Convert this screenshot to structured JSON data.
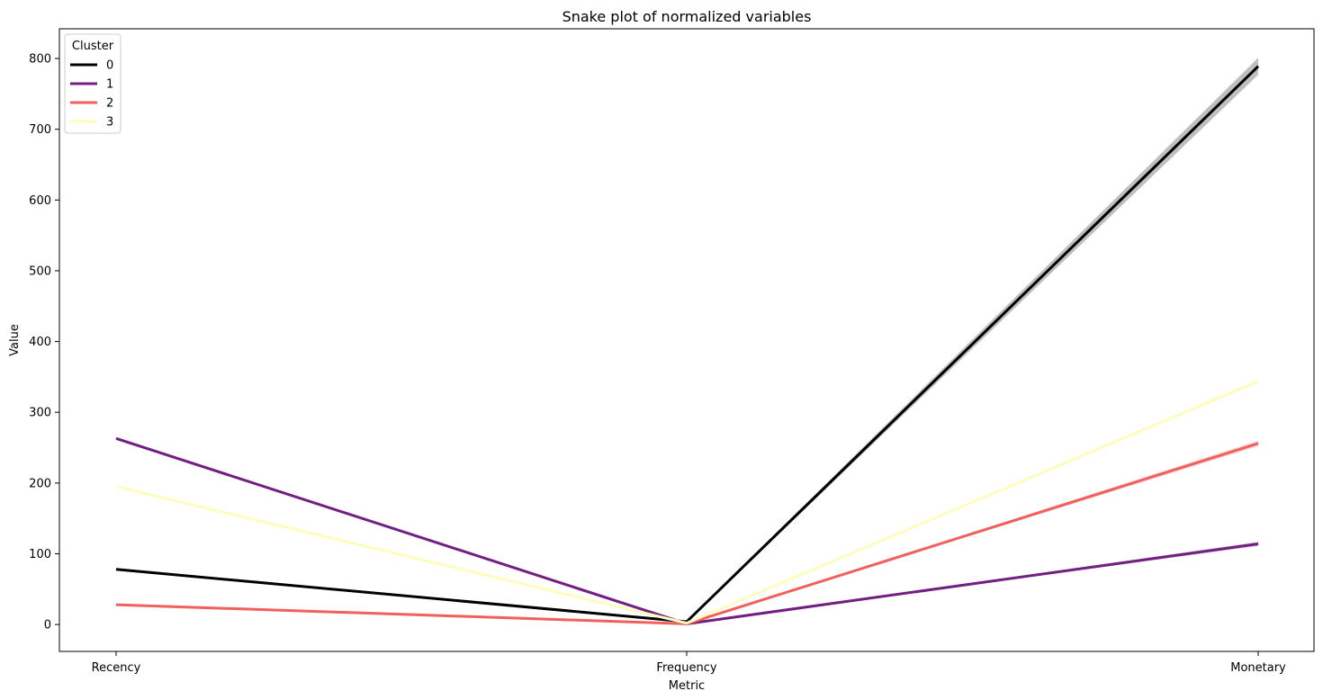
{
  "chart_data": {
    "type": "line",
    "title": "Snake plot of normalized variables",
    "xlabel": "Metric",
    "ylabel": "Value",
    "categories": [
      "Recency",
      "Frequency",
      "Monetary"
    ],
    "ylim": [
      -38,
      842
    ],
    "yticks": [
      0,
      100,
      200,
      300,
      400,
      500,
      600,
      700,
      800
    ],
    "grid": false,
    "legend": {
      "title": "Cluster",
      "placement": "top-left"
    },
    "series": [
      {
        "name": "0",
        "values": [
          78,
          4,
          789
        ],
        "color": "#000004",
        "band": [
          0,
          1,
          12
        ]
      },
      {
        "name": "1",
        "values": [
          263,
          1,
          114
        ],
        "color": "#721f81",
        "band": [
          2,
          0,
          3
        ]
      },
      {
        "name": "2",
        "values": [
          28,
          1,
          256
        ],
        "color": "#f1605d",
        "band": [
          1,
          0,
          4
        ]
      },
      {
        "name": "3",
        "values": [
          195,
          2,
          344
        ],
        "color": "#fcfdbf",
        "band": [
          1,
          0,
          3
        ]
      }
    ]
  }
}
